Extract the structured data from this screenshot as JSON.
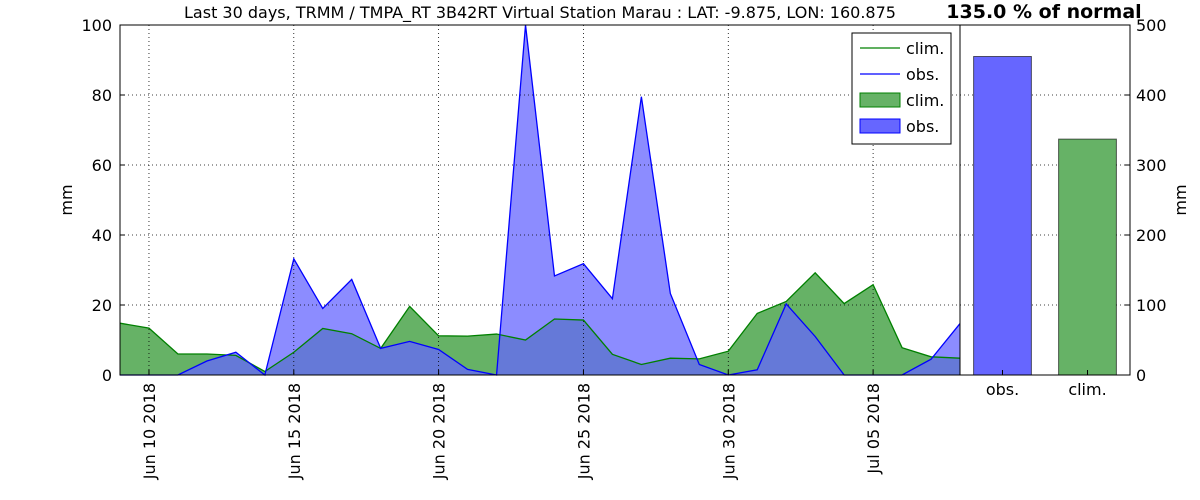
{
  "chart_data": [
    {
      "type": "area",
      "title": "Last 30 days, TRMM / TMPA_RT 3B42RT Virtual Station Marau : LAT: -9.875, LON: 160.875",
      "xlabel": "",
      "ylabel": "mm",
      "ylim": [
        0,
        100
      ],
      "yticks": [
        0,
        20,
        40,
        60,
        80,
        100
      ],
      "x": [
        "2018-06-09",
        "2018-06-10",
        "2018-06-11",
        "2018-06-12",
        "2018-06-13",
        "2018-06-14",
        "2018-06-15",
        "2018-06-16",
        "2018-06-17",
        "2018-06-18",
        "2018-06-19",
        "2018-06-20",
        "2018-06-21",
        "2018-06-22",
        "2018-06-23",
        "2018-06-24",
        "2018-06-25",
        "2018-06-26",
        "2018-06-27",
        "2018-06-28",
        "2018-06-29",
        "2018-06-30",
        "2018-07-01",
        "2018-07-02",
        "2018-07-03",
        "2018-07-04",
        "2018-07-05",
        "2018-07-06",
        "2018-07-07",
        "2018-07-08"
      ],
      "xticks": [
        "2018-06-10",
        "2018-06-15",
        "2018-06-20",
        "2018-06-25",
        "2018-06-30",
        "2018-07-05"
      ],
      "xtick_labels": [
        "Jun 10 2018",
        "Jun 15 2018",
        "Jun 20 2018",
        "Jun 25 2018",
        "Jun 30 2018",
        "Jul 05 2018"
      ],
      "grid": true,
      "legend_position": "top-right",
      "legend": [
        "clim.",
        "obs.",
        "clim.",
        "obs."
      ],
      "series": [
        {
          "name": "clim.",
          "color": "#008000",
          "fill": "#66b266",
          "values": [
            14.8,
            13.4,
            6.0,
            6.0,
            5.6,
            1.0,
            6.5,
            13.3,
            11.8,
            7.6,
            19.6,
            11.2,
            11.1,
            11.7,
            10.0,
            16.0,
            15.7,
            5.9,
            3.0,
            4.8,
            4.6,
            6.8,
            17.6,
            21.0,
            29.2,
            20.4,
            25.8,
            7.8,
            5.2,
            4.8
          ]
        },
        {
          "name": "obs.",
          "color": "#0000ff",
          "fill": "#6666ff",
          "values": [
            0.0,
            0.0,
            0.0,
            4.0,
            6.5,
            0.0,
            33.2,
            19.0,
            27.3,
            7.6,
            9.6,
            7.3,
            1.6,
            0.0,
            100.0,
            28.3,
            31.8,
            21.8,
            79.5,
            23.3,
            3.0,
            0.0,
            1.5,
            20.3,
            11.0,
            0.0,
            0.0,
            0.0,
            4.5,
            14.7
          ]
        }
      ]
    },
    {
      "type": "bar",
      "title": "135.0 % of normal",
      "ylabel": "mm",
      "ylim": [
        0,
        500
      ],
      "yticks": [
        0,
        100,
        200,
        300,
        400,
        500
      ],
      "categories": [
        "obs.",
        "clim."
      ],
      "values": [
        455,
        337
      ],
      "colors": [
        "#6666ff",
        "#66b266"
      ]
    }
  ]
}
